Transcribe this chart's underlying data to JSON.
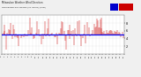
{
  "title": "Milwaukee Weather Wind Direction",
  "subtitle": "Normalized and Median (24 Hours) (New)",
  "bg_color": "#f0f0f0",
  "plot_bg_color": "#ffffff",
  "bar_color": "#cc0000",
  "median_color": "#0000ee",
  "median_value": 0.5,
  "ylim": [
    0.0,
    1.0
  ],
  "ytick_values": [
    0.2,
    0.4,
    0.6,
    0.8
  ],
  "ytick_labels": [
    "2",
    "4",
    "6",
    "8"
  ],
  "n_points": 144,
  "seed": 42,
  "legend_blue": "#0000cc",
  "legend_red": "#cc0000"
}
